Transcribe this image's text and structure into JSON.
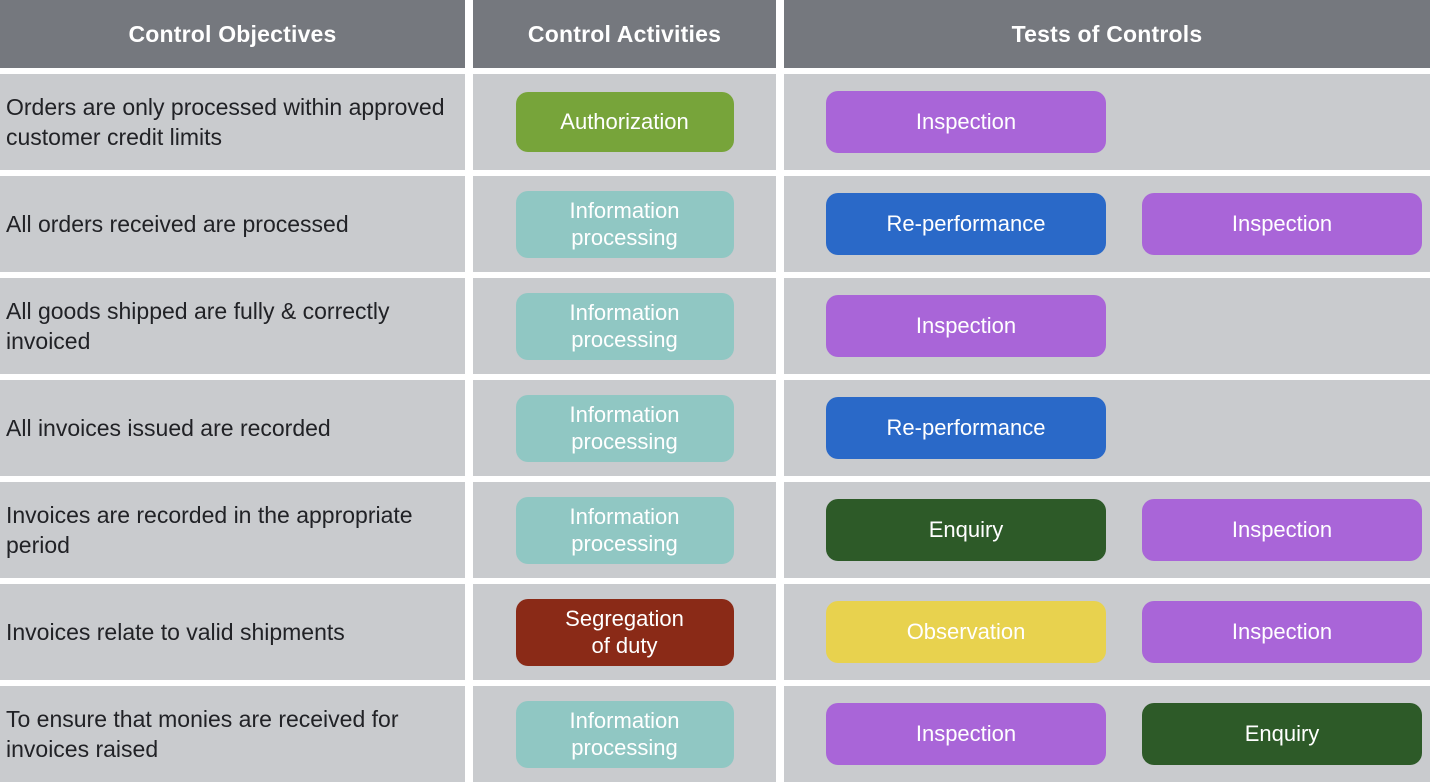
{
  "colors": {
    "header_bg": "#75787e",
    "row_bg": "#c9cbce",
    "objective_text": "#212226",
    "green": "#77a43a",
    "teal": "#90c7c3",
    "purple": "#a965d8",
    "blue": "#2a69c8",
    "darkgreen": "#2d5a28",
    "darkred": "#8a2a17",
    "yellow": "#e8d24e"
  },
  "table": {
    "headers": [
      "Control Objectives",
      "Control Activities",
      "Tests of Controls"
    ],
    "rows": [
      {
        "objective": "Orders are only processed within approved customer credit limits",
        "activity": {
          "label": "Authorization",
          "color": "green"
        },
        "tests": [
          {
            "label": "Inspection",
            "color": "purple"
          }
        ]
      },
      {
        "objective": "All orders received are processed",
        "activity": {
          "label": "Information\nprocessing",
          "color": "teal"
        },
        "tests": [
          {
            "label": "Re-performance",
            "color": "blue"
          },
          {
            "label": "Inspection",
            "color": "purple"
          }
        ]
      },
      {
        "objective": "All goods shipped are fully & correctly invoiced",
        "activity": {
          "label": "Information\nprocessing",
          "color": "teal"
        },
        "tests": [
          {
            "label": "Inspection",
            "color": "purple"
          }
        ]
      },
      {
        "objective": "All invoices issued are recorded",
        "activity": {
          "label": "Information\nprocessing",
          "color": "teal"
        },
        "tests": [
          {
            "label": "Re-performance",
            "color": "blue"
          }
        ]
      },
      {
        "objective": "Invoices are recorded in the appropriate period",
        "activity": {
          "label": "Information\nprocessing",
          "color": "teal"
        },
        "tests": [
          {
            "label": "Enquiry",
            "color": "darkgreen"
          },
          {
            "label": "Inspection",
            "color": "purple"
          }
        ]
      },
      {
        "objective": "Invoices relate to valid shipments",
        "activity": {
          "label": "Segregation\nof duty",
          "color": "darkred"
        },
        "tests": [
          {
            "label": "Observation",
            "color": "yellow"
          },
          {
            "label": "Inspection",
            "color": "purple"
          }
        ]
      },
      {
        "objective": "To ensure that monies are received for invoices raised",
        "activity": {
          "label": "Information\nprocessing",
          "color": "teal"
        },
        "tests": [
          {
            "label": "Inspection",
            "color": "purple"
          },
          {
            "label": "Enquiry",
            "color": "darkgreen"
          }
        ]
      }
    ]
  }
}
